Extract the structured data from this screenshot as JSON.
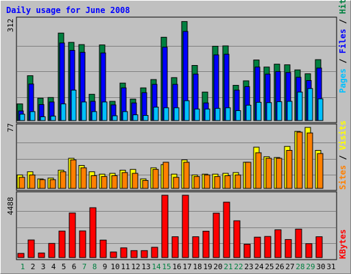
{
  "chart_data": [
    {
      "type": "bar",
      "title": "Daily usage for June 2008",
      "max_label": "312",
      "x_tick_labels": [
        "1",
        "2",
        "3",
        "4",
        "5",
        "6",
        "7",
        "8",
        "9",
        "10",
        "11",
        "12",
        "13",
        "14",
        "15",
        "16",
        "17",
        "18",
        "19",
        "20",
        "21",
        "22",
        "23",
        "24",
        "25",
        "26",
        "27",
        "28",
        "29",
        "30",
        "31"
      ],
      "weekend_days": [
        1,
        7,
        8,
        14,
        15,
        21,
        22,
        28,
        29
      ],
      "ylim": [
        0,
        312
      ],
      "legend": [
        "Pages",
        "Files",
        "Hits"
      ],
      "series": [
        {
          "name": "Hits",
          "color": "#008040",
          "values": [
            52,
            140,
            70,
            72,
            273,
            244,
            237,
            82,
            236,
            60,
            117,
            67,
            102,
            128,
            260,
            134,
            309,
            172,
            89,
            232,
            233,
            110,
            124,
            189,
            167,
            176,
            174,
            158,
            146,
            190
          ]
        },
        {
          "name": "Files",
          "color": "#0000ff",
          "values": [
            30,
            114,
            50,
            58,
            242,
            219,
            213,
            60,
            211,
            49,
            102,
            55,
            87,
            113,
            229,
            113,
            278,
            145,
            55,
            205,
            207,
            95,
            106,
            167,
            145,
            153,
            150,
            135,
            125,
            164
          ]
        },
        {
          "name": "Pages",
          "color": "#00c0ff",
          "values": [
            20,
            28,
            12,
            14,
            52,
            95,
            58,
            28,
            58,
            15,
            28,
            18,
            16,
            42,
            40,
            40,
            62,
            36,
            36,
            38,
            40,
            31,
            48,
            57,
            56,
            59,
            60,
            89,
            100,
            68
          ]
        }
      ]
    },
    {
      "type": "bar",
      "max_label": "77",
      "ylim": [
        0,
        77
      ],
      "legend": [
        "Sites",
        "Visits"
      ],
      "series": [
        {
          "name": "Visits",
          "color": "#ffff00",
          "values": [
            17,
            21,
            12,
            13,
            23,
            38,
            29,
            21,
            18,
            19,
            23,
            24,
            12,
            26,
            30,
            18,
            36,
            17,
            18,
            18,
            19,
            20,
            33,
            52,
            40,
            39,
            53,
            72,
            77,
            48
          ]
        },
        {
          "name": "Sites",
          "color": "#ff8000",
          "values": [
            14,
            17,
            11,
            11,
            21,
            36,
            26,
            16,
            15,
            16,
            20,
            19,
            10,
            24,
            33,
            14,
            33,
            15,
            17,
            15,
            16,
            17,
            33,
            45,
            38,
            38,
            48,
            71,
            70,
            44
          ]
        }
      ]
    },
    {
      "type": "bar",
      "max_label": "4488",
      "ylim": [
        0,
        4488
      ],
      "legend": [
        "KBytes"
      ],
      "series": [
        {
          "name": "KBytes",
          "color": "#ff0000",
          "values": [
            300,
            1270,
            330,
            1020,
            1910,
            3210,
            1920,
            3590,
            1260,
            400,
            700,
            500,
            500,
            740,
            4488,
            1500,
            4488,
            1500,
            1900,
            3200,
            3990,
            2650,
            960,
            1470,
            1520,
            2000,
            1300,
            2050,
            1000,
            1500
          ]
        }
      ]
    }
  ]
}
